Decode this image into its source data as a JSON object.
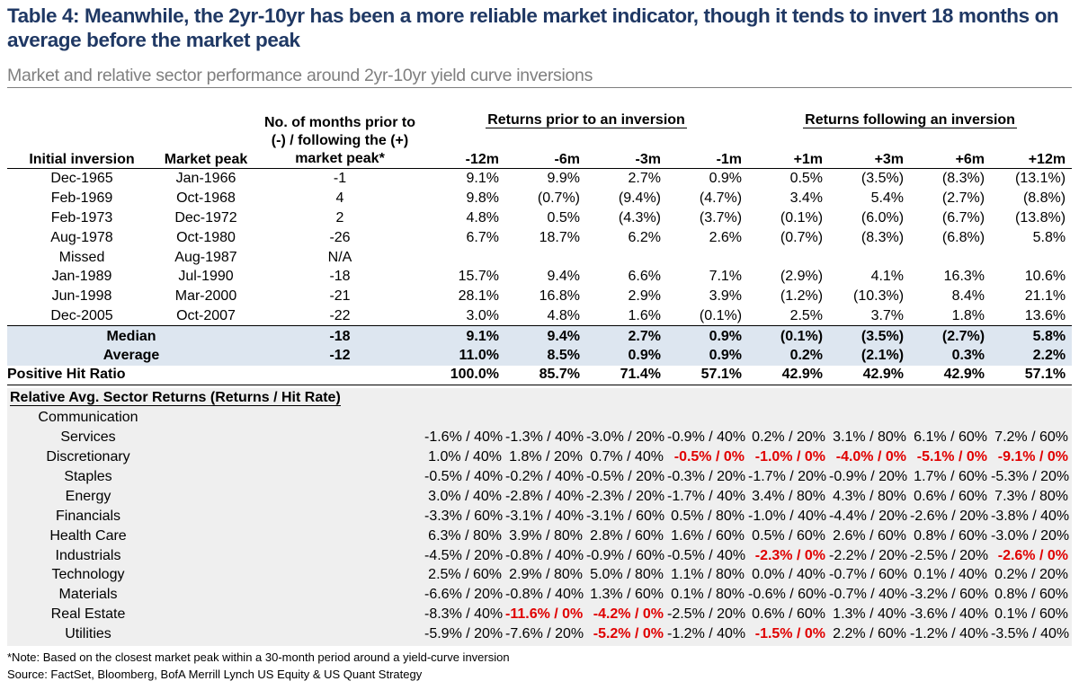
{
  "title": "Table 4: Meanwhile, the 2yr-10yr has been a more reliable market indicator, though it tends to invert 18 months on average before the market peak",
  "subtitle": "Market and relative sector performance around 2yr-10yr yield curve inversions",
  "headers": {
    "initial_inversion": "Initial inversion",
    "market_peak": "Market peak",
    "months_prior": "No. of months prior to (-) / following the (+) market peak*",
    "group_prior": "Returns prior to an inversion",
    "group_following": "Returns following an inversion",
    "periods": [
      "-12m",
      "-6m",
      "-3m",
      "-1m",
      "+1m",
      "+3m",
      "+6m",
      "+12m"
    ]
  },
  "rows": [
    {
      "inversion": "Dec-1965",
      "peak": "Jan-1966",
      "months": "-1",
      "values": [
        "9.1%",
        "9.9%",
        "2.7%",
        "0.9%",
        "0.5%",
        "(3.5%)",
        "(8.3%)",
        "(13.1%)"
      ]
    },
    {
      "inversion": "Feb-1969",
      "peak": "Oct-1968",
      "months": "4",
      "values": [
        "9.8%",
        "(0.7%)",
        "(9.4%)",
        "(4.7%)",
        "3.4%",
        "5.4%",
        "(2.7%)",
        "(8.8%)"
      ]
    },
    {
      "inversion": "Feb-1973",
      "peak": "Dec-1972",
      "months": "2",
      "values": [
        "4.8%",
        "0.5%",
        "(4.3%)",
        "(3.7%)",
        "(0.1%)",
        "(6.0%)",
        "(6.7%)",
        "(13.8%)"
      ]
    },
    {
      "inversion": "Aug-1978",
      "peak": "Oct-1980",
      "months": "-26",
      "values": [
        "6.7%",
        "18.7%",
        "6.2%",
        "2.6%",
        "(0.7%)",
        "(8.3%)",
        "(6.8%)",
        "5.8%"
      ]
    },
    {
      "inversion": "Missed",
      "peak": "Aug-1987",
      "months": "N/A",
      "values": [
        "",
        "",
        "",
        "",
        "",
        "",
        "",
        ""
      ]
    },
    {
      "inversion": "Jan-1989",
      "peak": "Jul-1990",
      "months": "-18",
      "values": [
        "15.7%",
        "9.4%",
        "6.6%",
        "7.1%",
        "(2.9%)",
        "4.1%",
        "16.3%",
        "10.6%"
      ]
    },
    {
      "inversion": "Jun-1998",
      "peak": "Mar-2000",
      "months": "-21",
      "values": [
        "28.1%",
        "16.8%",
        "2.9%",
        "3.9%",
        "(1.2%)",
        "(10.3%)",
        "8.4%",
        "21.1%"
      ]
    },
    {
      "inversion": "Dec-2005",
      "peak": "Oct-2007",
      "months": "-22",
      "values": [
        "3.0%",
        "4.8%",
        "1.6%",
        "(0.1%)",
        "2.5%",
        "3.7%",
        "1.8%",
        "13.6%"
      ]
    }
  ],
  "stats": [
    {
      "label": "Median",
      "months": "-18",
      "values": [
        "9.1%",
        "9.4%",
        "2.7%",
        "0.9%",
        "(0.1%)",
        "(3.5%)",
        "(2.7%)",
        "5.8%"
      ]
    },
    {
      "label": "Average",
      "months": "-12",
      "values": [
        "11.0%",
        "8.5%",
        "0.9%",
        "0.9%",
        "0.2%",
        "(2.1%)",
        "0.3%",
        "2.2%"
      ]
    },
    {
      "label": "Positive Hit Ratio",
      "months": "",
      "values": [
        "100.0%",
        "85.7%",
        "71.4%",
        "57.1%",
        "42.9%",
        "42.9%",
        "42.9%",
        "57.1%"
      ]
    }
  ],
  "sector_section_title": "Relative Avg. Sector Returns (Returns / Hit Rate)",
  "sector_pre_label": "Communication",
  "sectors": [
    {
      "name": "Services",
      "values": [
        "-1.6% / 40%",
        "-1.3% / 40%",
        "-3.0% / 20%",
        "-0.9% / 40%",
        "0.2% / 20%",
        "3.1% / 80%",
        "6.1% / 60%",
        "7.2% / 60%"
      ],
      "red": []
    },
    {
      "name": "Discretionary",
      "values": [
        "1.0% / 40%",
        "1.8% / 20%",
        "0.7% / 40%",
        "-0.5% / 0%",
        "-1.0% / 0%",
        "-4.0% / 0%",
        "-5.1% / 0%",
        "-9.1% / 0%"
      ],
      "red": [
        3,
        4,
        5,
        6,
        7
      ]
    },
    {
      "name": "Staples",
      "values": [
        "-0.5% / 40%",
        "-0.2% / 40%",
        "-0.5% / 20%",
        "-0.3% / 20%",
        "-1.7% / 20%",
        "-0.9% / 20%",
        "1.7% / 60%",
        "-5.3% / 20%"
      ],
      "red": []
    },
    {
      "name": "Energy",
      "values": [
        "3.0% / 40%",
        "-2.8% / 40%",
        "-2.3% / 20%",
        "-1.7% / 40%",
        "3.4% / 80%",
        "4.3% / 80%",
        "0.6% / 60%",
        "7.3% / 80%"
      ],
      "red": []
    },
    {
      "name": "Financials",
      "values": [
        "-3.3% / 60%",
        "-3.1% / 40%",
        "-3.1% / 60%",
        "0.5% / 80%",
        "-1.0% / 40%",
        "-4.4% / 20%",
        "-2.6% / 20%",
        "-3.8% / 40%"
      ],
      "red": []
    },
    {
      "name": "Health Care",
      "values": [
        "6.3% / 80%",
        "3.9% / 80%",
        "2.8% / 60%",
        "1.6% / 60%",
        "0.5% / 60%",
        "2.6% / 60%",
        "0.8% / 60%",
        "-3.0% / 20%"
      ],
      "red": []
    },
    {
      "name": "Industrials",
      "values": [
        "-4.5% / 20%",
        "-0.8% / 40%",
        "-0.9% / 60%",
        "-0.5% / 40%",
        "-2.3% / 0%",
        "-2.2% / 20%",
        "-2.5% / 20%",
        "-2.6% / 0%"
      ],
      "red": [
        4,
        7
      ]
    },
    {
      "name": "Technology",
      "values": [
        "2.5% / 60%",
        "2.9% / 80%",
        "5.0% / 80%",
        "1.1% / 80%",
        "0.0% / 40%",
        "-0.7% / 60%",
        "0.1% / 40%",
        "0.2% / 20%"
      ],
      "red": []
    },
    {
      "name": "Materials",
      "values": [
        "-6.6% / 20%",
        "-0.8% / 40%",
        "1.3% / 60%",
        "0.1% / 80%",
        "-0.6% / 60%",
        "-0.7% / 40%",
        "-3.2% / 60%",
        "0.8% / 60%"
      ],
      "red": []
    },
    {
      "name": "Real Estate",
      "values": [
        "-8.3% / 40%",
        "-11.6% / 0%",
        "-4.2% / 0%",
        "-2.5% / 20%",
        "0.6% / 60%",
        "1.3% / 40%",
        "-3.6% / 40%",
        "0.1% / 60%"
      ],
      "red": [
        1,
        2
      ]
    },
    {
      "name": "Utilities",
      "values": [
        "-5.9% / 20%",
        "-7.6% / 20%",
        "-5.2% / 0%",
        "-1.2% / 40%",
        "-1.5% / 0%",
        "2.2% / 60%",
        "-1.2% / 40%",
        "-3.5% / 40%"
      ],
      "red": [
        2,
        4
      ]
    }
  ],
  "footnote": "*Note: Based on the closest market peak within a 30-month period around a yield-curve inversion",
  "source": "Source: FactSet, Bloomberg, BofA Merrill Lynch US Equity & US Quant Strategy",
  "colors": {
    "title": "#1f3864",
    "subtitle": "#7f7f7f",
    "stats_bg": "#dde6f0",
    "sector_bg": "#efefef",
    "negative_zero_hit": "#e00000"
  }
}
